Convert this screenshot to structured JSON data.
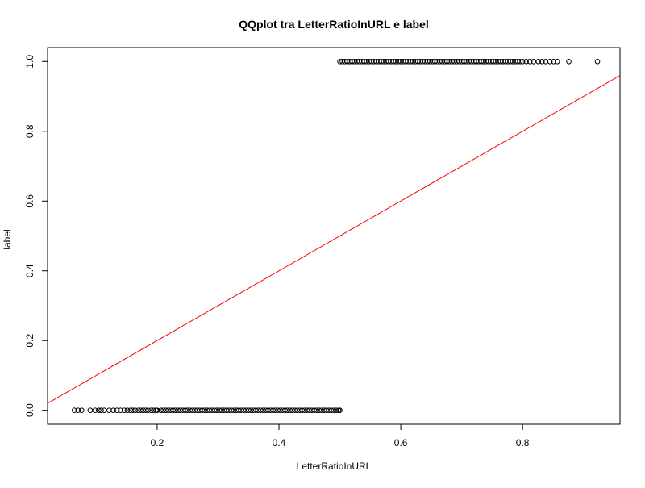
{
  "chart_data": {
    "type": "scatter",
    "title": "QQplot tra LetterRatioInURL e label",
    "xlabel": "LetterRatioInURL",
    "ylabel": "label",
    "xlim": [
      0.02,
      0.96
    ],
    "ylim": [
      -0.04,
      1.04
    ],
    "x_ticks": [
      0.2,
      0.4,
      0.6,
      0.8
    ],
    "x_tick_labels": [
      "0.2",
      "0.4",
      "0.6",
      "0.8"
    ],
    "y_ticks": [
      0.0,
      0.2,
      0.4,
      0.6,
      0.8,
      1.0
    ],
    "y_tick_labels": [
      "0.0",
      "0.2",
      "0.4",
      "0.6",
      "0.8",
      "1.0"
    ],
    "grid": false,
    "point_color": "#000000",
    "line_color": "#ff0000",
    "series": [
      {
        "y": 0,
        "x": [
          0.064,
          0.07,
          0.076,
          0.09,
          0.098,
          0.104,
          0.108,
          0.113,
          0.121,
          0.128,
          0.134,
          0.14,
          0.146,
          0.151,
          0.156,
          0.16,
          0.164,
          0.169,
          0.173,
          0.177,
          0.181,
          0.185,
          0.19,
          0.194,
          0.198,
          0.2,
          0.206,
          0.21,
          0.214,
          0.218,
          0.222,
          0.226,
          0.23,
          0.234,
          0.238,
          0.242,
          0.246,
          0.25,
          0.254,
          0.258,
          0.262,
          0.266,
          0.27,
          0.274,
          0.278,
          0.282,
          0.286,
          0.29,
          0.294,
          0.298,
          0.302,
          0.306,
          0.31,
          0.314,
          0.318,
          0.322,
          0.326,
          0.33,
          0.334,
          0.338,
          0.342,
          0.346,
          0.35,
          0.354,
          0.358,
          0.362,
          0.366,
          0.37,
          0.374,
          0.378,
          0.382,
          0.386,
          0.39,
          0.394,
          0.398,
          0.402,
          0.406,
          0.41,
          0.414,
          0.418,
          0.422,
          0.426,
          0.43,
          0.434,
          0.438,
          0.442,
          0.446,
          0.45,
          0.454,
          0.458,
          0.462,
          0.466,
          0.47,
          0.474,
          0.478,
          0.482,
          0.486,
          0.49,
          0.494,
          0.498,
          0.5
        ]
      },
      {
        "y": 1,
        "x": [
          0.5,
          0.504,
          0.508,
          0.512,
          0.516,
          0.52,
          0.524,
          0.528,
          0.532,
          0.536,
          0.54,
          0.544,
          0.548,
          0.552,
          0.556,
          0.56,
          0.564,
          0.568,
          0.572,
          0.576,
          0.58,
          0.584,
          0.588,
          0.592,
          0.596,
          0.6,
          0.604,
          0.608,
          0.612,
          0.616,
          0.62,
          0.624,
          0.628,
          0.632,
          0.636,
          0.64,
          0.644,
          0.648,
          0.652,
          0.656,
          0.66,
          0.664,
          0.668,
          0.672,
          0.676,
          0.68,
          0.684,
          0.688,
          0.692,
          0.696,
          0.7,
          0.704,
          0.708,
          0.712,
          0.716,
          0.72,
          0.724,
          0.728,
          0.732,
          0.736,
          0.74,
          0.744,
          0.748,
          0.752,
          0.756,
          0.76,
          0.764,
          0.768,
          0.772,
          0.776,
          0.78,
          0.784,
          0.788,
          0.792,
          0.796,
          0.8,
          0.806,
          0.812,
          0.818,
          0.826,
          0.832,
          0.838,
          0.845,
          0.851,
          0.857,
          0.876,
          0.923
        ]
      }
    ],
    "reference_line": {
      "intercept": 0,
      "slope": 1
    }
  }
}
